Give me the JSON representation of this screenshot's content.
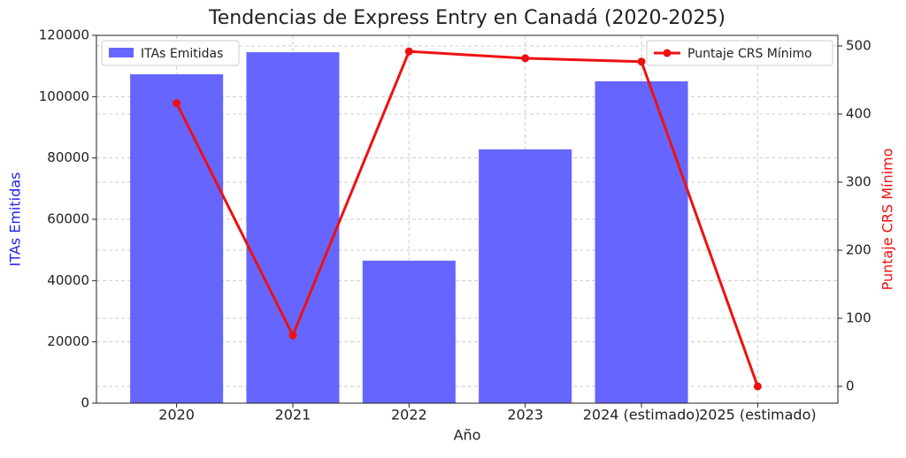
{
  "chart_data": {
    "type": "bar-line",
    "title": "Tendencias de Express Entry en Canadá (2020-2025)",
    "x_label": "Año",
    "y_label": "ITAs Emitidas",
    "y2_label": "Puntaje CRS Mínimo",
    "categories": [
      "2020",
      "2021",
      "2022",
      "2023",
      "2024 (estimado)",
      "2025 (estimado)"
    ],
    "series": [
      {
        "name": "ITAs Emitidas",
        "type": "bar",
        "color": "#6666ff",
        "values": [
          107300,
          114500,
          46500,
          82800,
          105000,
          0
        ]
      },
      {
        "name": "Puntaje CRS Mínimo",
        "type": "line",
        "axis": "y2",
        "color": "#ee1111",
        "values": [
          416,
          75,
          492,
          482,
          477,
          0
        ]
      }
    ],
    "ylim": [
      0,
      120000
    ],
    "yticks": [
      0,
      20000,
      40000,
      60000,
      80000,
      100000,
      120000
    ],
    "y2lim": [
      -24.7,
      515.6
    ],
    "y2ticks": [
      0,
      100,
      200,
      300,
      400,
      500
    ],
    "grid": true
  }
}
